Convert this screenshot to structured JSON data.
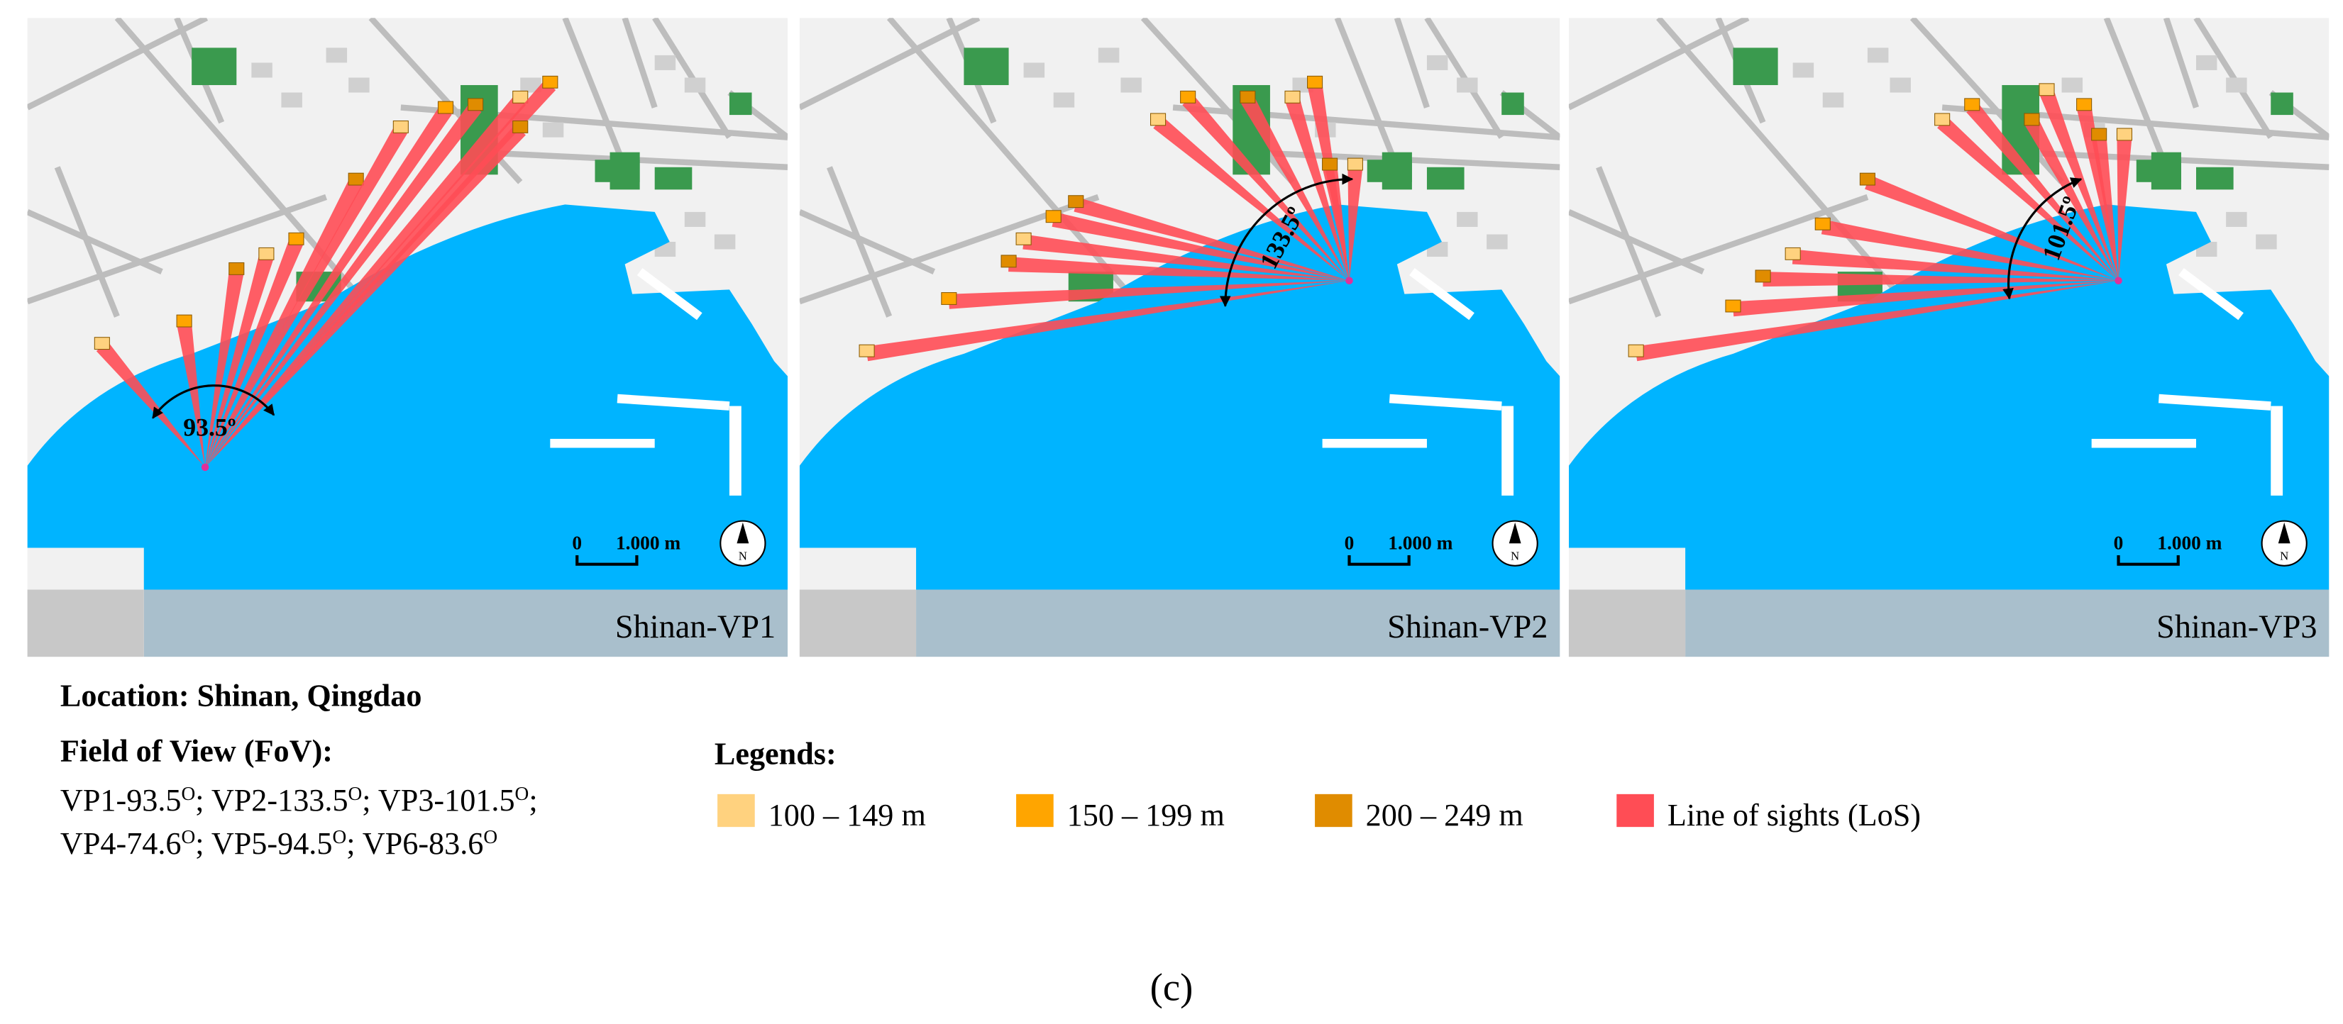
{
  "panels": [
    {
      "label": "Shinan-VP1",
      "angle": "93.5º"
    },
    {
      "label": "Shinan-VP2",
      "angle": "133.5º"
    },
    {
      "label": "Shinan-VP3",
      "angle": "101.5º"
    }
  ],
  "scale_bar": {
    "zero": "0",
    "distance": "1.000 m"
  },
  "north": "N",
  "location": "Location: Shinan, Qingdao",
  "fov": {
    "title": "Field of View (FoV):",
    "lines": [
      [
        {
          "text": "VP1-93.5"
        },
        {
          "sup": "O"
        },
        {
          "text": "; VP2-133.5"
        },
        {
          "sup": "O"
        },
        {
          "text": "; VP3-101.5"
        },
        {
          "sup": "O"
        },
        {
          "text": ";"
        }
      ],
      [
        {
          "text": "VP4-74.6"
        },
        {
          "sup": "O"
        },
        {
          "text": "; VP5-94.5"
        },
        {
          "sup": "O"
        },
        {
          "text": "; VP6-83.6"
        },
        {
          "sup": "O"
        }
      ]
    ]
  },
  "legend": {
    "title": "Legends:",
    "items": [
      {
        "label": "100 – 149 m",
        "color": "#ffd27f"
      },
      {
        "label": "150 – 199 m",
        "color": "#ffa500"
      },
      {
        "label": "200 – 249 m",
        "color": "#e08c00"
      },
      {
        "label": "Line of sights (LoS)",
        "color": "#ff4d55"
      }
    ]
  },
  "caption": "(c)"
}
